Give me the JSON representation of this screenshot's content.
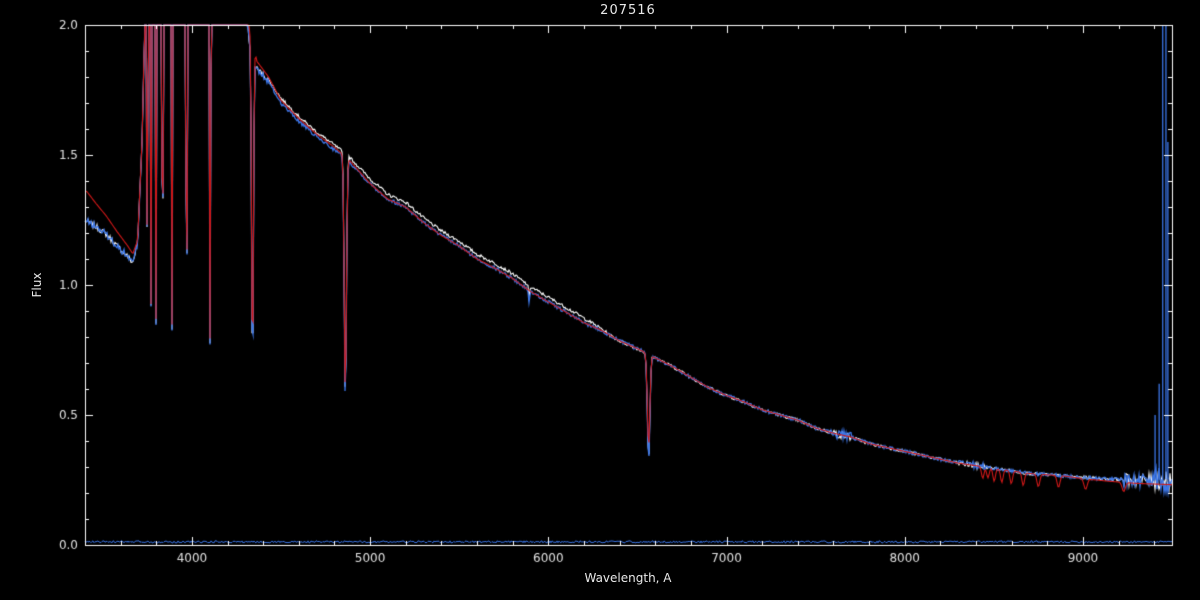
{
  "figure": {
    "title": "207516",
    "xlabel": "Wavelength, A",
    "ylabel": "Flux",
    "background": "#000000",
    "axis_color": "#ffffff",
    "tick_label_color": "#e0e0e0"
  },
  "chart_data": {
    "type": "line",
    "title": "207516",
    "xlabel": "Wavelength, A",
    "ylabel": "Flux",
    "xlim": [
      3400,
      9500
    ],
    "ylim": [
      0.0,
      2.0
    ],
    "x_ticks": [
      "4000",
      "5000",
      "6000",
      "7000",
      "8000",
      "9000"
    ],
    "x_tick_values": [
      4000,
      5000,
      6000,
      7000,
      8000,
      9000
    ],
    "x_minor_step": 200,
    "y_ticks": [
      "0.0",
      "0.5",
      "1.0",
      "1.5",
      "2.0"
    ],
    "y_tick_values": [
      0.0,
      0.5,
      1.0,
      1.5,
      2.0
    ],
    "y_minor_step": 0.1,
    "grid": false,
    "legend": "none",
    "series": [
      {
        "name": "observed-spectrum-blue",
        "color": "#3b76e8",
        "style": "noisy-line",
        "line_width": 1.3,
        "noise_base": 0.007,
        "noise_regions": [
          {
            "range": [
              3410,
              3740
            ],
            "amp": 0.013
          },
          {
            "range": [
              4280,
              4430
            ],
            "amp": 0.012
          },
          {
            "range": [
              7580,
              7700
            ],
            "amp": 0.018
          },
          {
            "range": [
              8300,
              8460
            ],
            "amp": 0.014
          },
          {
            "range": [
              9230,
              9400
            ],
            "amp": 0.028
          },
          {
            "range": [
              9400,
              9500
            ],
            "amp": 0.05
          }
        ],
        "continuum": [
          [
            3410,
            1.245
          ],
          [
            3460,
            1.225
          ],
          [
            3520,
            1.195
          ],
          [
            3580,
            1.15
          ],
          [
            3640,
            1.11
          ],
          [
            3668,
            1.085
          ],
          [
            3695,
            1.16
          ],
          [
            3720,
            1.55
          ],
          [
            3745,
            2.3
          ],
          [
            3780,
            3.4
          ],
          [
            4200,
            3.4
          ],
          [
            4255,
            2.85
          ],
          [
            4290,
            2.15
          ],
          [
            4320,
            1.95
          ],
          [
            4365,
            1.83
          ],
          [
            4430,
            1.78
          ],
          [
            4500,
            1.7
          ],
          [
            4600,
            1.63
          ],
          [
            4700,
            1.57
          ],
          [
            4800,
            1.52
          ],
          [
            4890,
            1.47
          ],
          [
            5000,
            1.39
          ],
          [
            5100,
            1.33
          ],
          [
            5200,
            1.3
          ],
          [
            5300,
            1.24
          ],
          [
            5400,
            1.19
          ],
          [
            5500,
            1.15
          ],
          [
            5600,
            1.1
          ],
          [
            5700,
            1.065
          ],
          [
            5800,
            1.025
          ],
          [
            5900,
            0.975
          ],
          [
            6000,
            0.935
          ],
          [
            6100,
            0.895
          ],
          [
            6200,
            0.855
          ],
          [
            6300,
            0.825
          ],
          [
            6400,
            0.785
          ],
          [
            6500,
            0.755
          ],
          [
            6600,
            0.72
          ],
          [
            6700,
            0.685
          ],
          [
            6800,
            0.645
          ],
          [
            6900,
            0.605
          ],
          [
            7000,
            0.575
          ],
          [
            7100,
            0.55
          ],
          [
            7200,
            0.52
          ],
          [
            7300,
            0.5
          ],
          [
            7400,
            0.48
          ],
          [
            7500,
            0.45
          ],
          [
            7600,
            0.43
          ],
          [
            7700,
            0.415
          ],
          [
            7800,
            0.39
          ],
          [
            7900,
            0.375
          ],
          [
            8000,
            0.36
          ],
          [
            8100,
            0.345
          ],
          [
            8200,
            0.33
          ],
          [
            8300,
            0.315
          ],
          [
            8400,
            0.305
          ],
          [
            8500,
            0.295
          ],
          [
            8600,
            0.285
          ],
          [
            8700,
            0.275
          ],
          [
            8800,
            0.27
          ],
          [
            8900,
            0.265
          ],
          [
            9000,
            0.26
          ],
          [
            9150,
            0.254
          ],
          [
            9300,
            0.25
          ],
          [
            9500,
            0.252
          ]
        ],
        "absorption_lines": [
          {
            "center": 6563,
            "bottom": 0.33,
            "sigma": 7
          },
          {
            "center": 4861,
            "bottom": 0.54,
            "sigma": 6
          },
          {
            "center": 4340,
            "bottom": 0.635,
            "sigma": 5
          },
          {
            "center": 4102,
            "bottom": 0.76,
            "sigma": 5
          },
          {
            "center": 3970,
            "bottom": 0.77,
            "sigma": 4.5
          },
          {
            "center": 3889,
            "bottom": 0.78,
            "sigma": 4
          },
          {
            "center": 3835,
            "bottom": 0.8,
            "sigma": 4
          },
          {
            "center": 3798,
            "bottom": 0.83,
            "sigma": 3.5
          },
          {
            "center": 3771,
            "bottom": 0.87,
            "sigma": 3
          },
          {
            "center": 3750,
            "bottom": 0.91,
            "sigma": 3
          },
          {
            "center": 5892,
            "bottom": 0.93,
            "sigma": 3
          }
        ],
        "edge_spikes": [
          {
            "wavelength": 9405,
            "flux": 0.5
          },
          {
            "wavelength": 9428,
            "flux": 0.62
          },
          {
            "wavelength": 9448,
            "flux": 2.0
          },
          {
            "wavelength": 9466,
            "flux": 2.0
          },
          {
            "wavelength": 9477,
            "flux": 1.55
          }
        ]
      },
      {
        "name": "observed-spectrum-white",
        "color": "#ffffff",
        "style": "noisy-line",
        "line_width": 1.1,
        "follows": "observed-spectrum-blue",
        "noise_scale": 0.85,
        "offset_region": {
          "range": [
            4350,
            6350
          ],
          "ramp": 150,
          "amount": 0.018
        }
      },
      {
        "name": "model-spectrum-red",
        "color": "#d01818",
        "style": "smooth-line",
        "line_width": 1.1,
        "continuum": [
          [
            3410,
            1.36
          ],
          [
            3460,
            1.315
          ],
          [
            3520,
            1.265
          ],
          [
            3580,
            1.205
          ],
          [
            3640,
            1.15
          ],
          [
            3668,
            1.12
          ],
          [
            3695,
            1.17
          ],
          [
            3720,
            1.55
          ],
          [
            3745,
            2.3
          ],
          [
            3780,
            3.4
          ],
          [
            4200,
            3.4
          ],
          [
            4255,
            2.9
          ],
          [
            4290,
            2.2
          ],
          [
            4320,
            2.0
          ],
          [
            4365,
            1.86
          ],
          [
            4430,
            1.8
          ],
          [
            4500,
            1.71
          ],
          [
            4600,
            1.64
          ],
          [
            4700,
            1.58
          ],
          [
            4800,
            1.53
          ],
          [
            4890,
            1.475
          ],
          [
            5000,
            1.39
          ],
          [
            5100,
            1.33
          ],
          [
            5200,
            1.3
          ],
          [
            5300,
            1.24
          ],
          [
            5400,
            1.19
          ],
          [
            5500,
            1.15
          ],
          [
            5600,
            1.1
          ],
          [
            5700,
            1.065
          ],
          [
            5800,
            1.025
          ],
          [
            5900,
            0.975
          ],
          [
            6000,
            0.935
          ],
          [
            6100,
            0.895
          ],
          [
            6200,
            0.855
          ],
          [
            6300,
            0.825
          ],
          [
            6400,
            0.785
          ],
          [
            6500,
            0.755
          ],
          [
            6600,
            0.72
          ],
          [
            6700,
            0.685
          ],
          [
            6800,
            0.645
          ],
          [
            6900,
            0.605
          ],
          [
            7000,
            0.575
          ],
          [
            7100,
            0.55
          ],
          [
            7200,
            0.52
          ],
          [
            7300,
            0.5
          ],
          [
            7400,
            0.48
          ],
          [
            7500,
            0.45
          ],
          [
            7600,
            0.43
          ],
          [
            7700,
            0.415
          ],
          [
            7800,
            0.39
          ],
          [
            7900,
            0.375
          ],
          [
            8000,
            0.36
          ],
          [
            8100,
            0.345
          ],
          [
            8200,
            0.33
          ],
          [
            8300,
            0.315
          ],
          [
            8400,
            0.305
          ],
          [
            8500,
            0.295
          ],
          [
            8600,
            0.285
          ],
          [
            8700,
            0.275
          ],
          [
            8800,
            0.27
          ],
          [
            8900,
            0.265
          ],
          [
            9000,
            0.255
          ],
          [
            9150,
            0.245
          ],
          [
            9300,
            0.237
          ],
          [
            9500,
            0.232
          ]
        ],
        "absorption_lines": [
          {
            "center": 6563,
            "bottom": 0.38,
            "sigma": 7
          },
          {
            "center": 4861,
            "bottom": 0.58,
            "sigma": 6
          },
          {
            "center": 4340,
            "bottom": 0.68,
            "sigma": 5
          },
          {
            "center": 4102,
            "bottom": 0.78,
            "sigma": 5
          },
          {
            "center": 3970,
            "bottom": 0.79,
            "sigma": 4.5
          },
          {
            "center": 3889,
            "bottom": 0.8,
            "sigma": 4
          },
          {
            "center": 3835,
            "bottom": 0.82,
            "sigma": 4
          },
          {
            "center": 3798,
            "bottom": 0.85,
            "sigma": 3.5
          },
          {
            "center": 3771,
            "bottom": 0.88,
            "sigma": 3
          },
          {
            "center": 3750,
            "bottom": 0.92,
            "sigma": 3
          },
          {
            "center": 8438,
            "depth": 0.045,
            "sigma": 7
          },
          {
            "center": 8467,
            "depth": 0.04,
            "sigma": 7
          },
          {
            "center": 8502,
            "depth": 0.05,
            "sigma": 7
          },
          {
            "center": 8545,
            "depth": 0.05,
            "sigma": 7
          },
          {
            "center": 8598,
            "depth": 0.05,
            "sigma": 7
          },
          {
            "center": 8665,
            "depth": 0.05,
            "sigma": 7
          },
          {
            "center": 8750,
            "depth": 0.048,
            "sigma": 8
          },
          {
            "center": 8863,
            "depth": 0.045,
            "sigma": 8
          },
          {
            "center": 9015,
            "depth": 0.04,
            "sigma": 9
          },
          {
            "center": 9229,
            "depth": 0.035,
            "sigma": 9
          }
        ]
      }
    ],
    "baseline_series": {
      "name": "zero-level-trace",
      "color": "#3b76e8",
      "flux": 0.012,
      "noise": 0.004
    }
  }
}
